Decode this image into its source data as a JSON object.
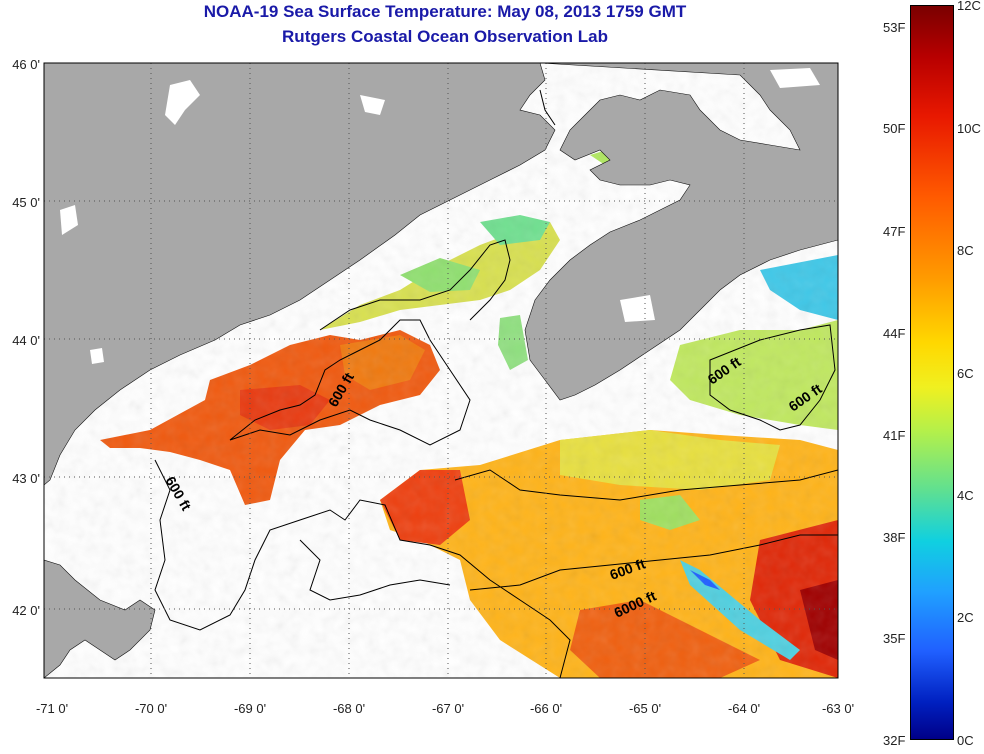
{
  "title_line1": "NOAA-19 Sea Surface Temperature:  May 08, 2013 1759 GMT",
  "title_line2": "Rutgers Coastal Ocean Observation Lab",
  "lat_labels": [
    "46 0'",
    "45 0'",
    "44 0'",
    "43 0'",
    "42 0'"
  ],
  "lon_labels": [
    "-71 0'",
    "-70 0'",
    "-69 0'",
    "-68 0'",
    "-67 0'",
    "-66 0'",
    "-65 0'",
    "-64 0'",
    "-63 0'"
  ],
  "contour_labels": [
    "600 ft",
    "600 ft",
    "600 ft",
    "600 ft",
    "600 ft",
    "6000 ft"
  ],
  "colorbar_f": [
    "53F",
    "50F",
    "47F",
    "44F",
    "41F",
    "38F",
    "35F",
    "32F"
  ],
  "colorbar_c": [
    "12C",
    "10C",
    "8C",
    "6C",
    "4C",
    "2C",
    "0C"
  ],
  "colors": {
    "land": "#a8a8a8",
    "title": "#1a1aa8",
    "ocean_nodata": "#ffffff"
  }
}
